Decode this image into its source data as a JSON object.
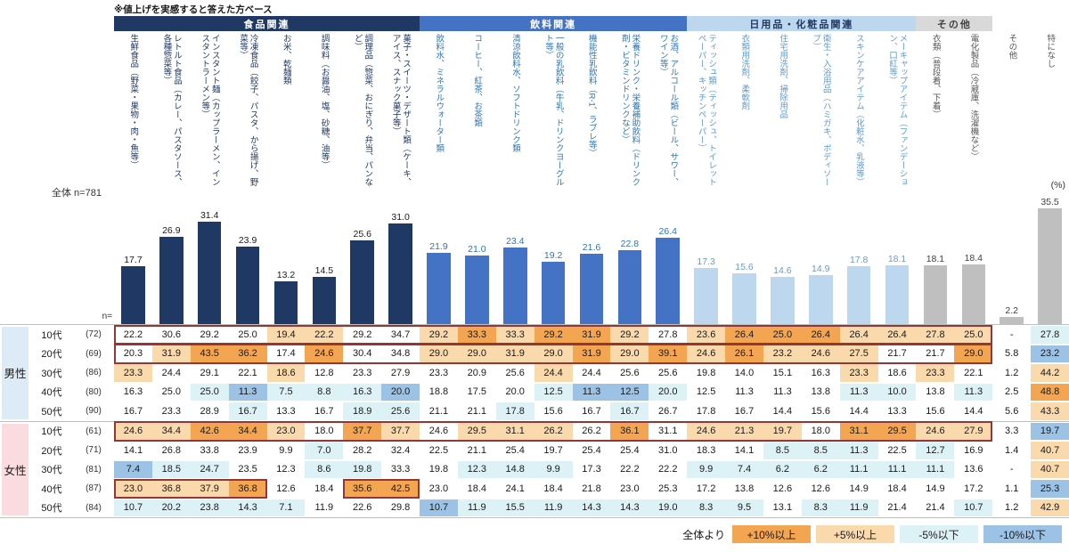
{
  "note": "※値上げを実感すると答えた方ベース",
  "percent_unit": "(%)",
  "overall_label": "全体 n=781",
  "n_label": "n=",
  "groups": [
    {
      "label": "食品関連",
      "header_bg": "#1F3864",
      "header_text": "#FFFFFF",
      "bar_color": "#1F3864",
      "value_color": "#1A1A1A",
      "label_color": "#1F3864",
      "col_start": 1,
      "col_end": 8
    },
    {
      "label": "飲料関連",
      "header_bg": "#4472C4",
      "header_text": "#FFFFFF",
      "bar_color": "#4472C4",
      "value_color": "#2E75B6",
      "label_color": "#2E75B6",
      "col_start": 9,
      "col_end": 15
    },
    {
      "label": "日用品・化粧品関連",
      "header_bg": "#BDD7EE",
      "header_text": "#1F3864",
      "bar_color": "#BDD7EE",
      "value_color": "#6D9BC8",
      "label_color": "#5B9BD5",
      "col_start": 16,
      "col_end": 21
    },
    {
      "label": "その他",
      "header_bg": "#D9D9D9",
      "header_text": "#404040",
      "bar_color": "#BFBFBF",
      "value_color": "#404040",
      "label_color": "#595959",
      "col_start": 22,
      "col_end": 23
    }
  ],
  "columns": [
    {
      "label": "生鮮食品（野菜・果物・肉・魚等）",
      "group": 0
    },
    {
      "label": "レトルト食品（カレー、パスタソース、各種惣菜等）",
      "group": 0
    },
    {
      "label": "インスタント麺（カップラーメン、インスタントラーメン等）",
      "group": 0
    },
    {
      "label": "冷凍食品（餃子、パスタ、から揚げ、野菜等）",
      "group": 0
    },
    {
      "label": "お米、乾麺類",
      "group": 0
    },
    {
      "label": "調味料（お醤油、塩、砂糖、油等）",
      "group": 0
    },
    {
      "label": "調理品（惣菜、おにぎり、弁当、パンなど）",
      "group": 0
    },
    {
      "label": "菓子・スイーツ・デザート類（ケーキ、アイス、スナック菓子等）",
      "group": 0
    },
    {
      "label": "飲料水、ミネラルウォーター類",
      "group": 1
    },
    {
      "label": "コーヒー、紅茶、お茶類",
      "group": 1
    },
    {
      "label": "清涼飲料水、ソフトドリンク類",
      "group": 1
    },
    {
      "label": "一般の乳飲料（牛乳、ドリンクヨーグルト等）",
      "group": 1
    },
    {
      "label": "機能性乳飲料（R-1、ラブレ等）",
      "group": 1
    },
    {
      "label": "栄養ドリンク・栄養補助飲料（ドリンク剤・ビタミンドリンクなど）",
      "group": 1
    },
    {
      "label": "お酒、アルコール類（ビール、サワー、ワイン等）",
      "group": 1
    },
    {
      "label": "ティッシュ類（ティッシュ、トイレットペーパー、キッチンペーパー）",
      "group": 2
    },
    {
      "label": "衣類用洗剤、柔軟剤",
      "group": 2
    },
    {
      "label": "住宅用洗剤、掃除用品",
      "group": 2
    },
    {
      "label": "衛生・入浴用品（ハミガキ、ボディソープ）",
      "group": 2
    },
    {
      "label": "スキンケアアイテム（化粧水、乳液等）",
      "group": 2
    },
    {
      "label": "メーキャップアイテム（ファンデーション、口紅等）",
      "group": 2
    },
    {
      "label": "衣類（普段着、下着）",
      "group": 3
    },
    {
      "label": "電化製品（冷蔵庫、洗濯機など）",
      "group": 3
    },
    {
      "label": "その他",
      "group": 3
    },
    {
      "label": "特になし",
      "group": 3
    }
  ],
  "chart_data": {
    "type": "bar",
    "title": "※値上げを実感すると答えた方ベース",
    "unit": "%",
    "ylim": [
      0,
      40
    ],
    "overall_n": "全体 n=781",
    "categories": [
      "生鮮食品（野菜・果物・肉・魚等）",
      "レトルト食品（カレー、パスタソース、各種惣菜等）",
      "インスタント麺（カップラーメン、インスタントラーメン等）",
      "冷凍食品（餃子、パスタ、から揚げ、野菜等）",
      "お米、乾麺類",
      "調味料（お醤油、塩、砂糖、油等）",
      "調理品（惣菜、おにぎり、弁当、パンなど）",
      "菓子・スイーツ・デザート類（ケーキ、アイス、スナック菓子等）",
      "飲料水、ミネラルウォーター類",
      "コーヒー、紅茶、お茶類",
      "清涼飲料水、ソフトドリンク類",
      "一般の乳飲料（牛乳、ドリンクヨーグルト等）",
      "機能性乳飲料（R-1、ラブレ等）",
      "栄養ドリンク・栄養補助飲料（ドリンク剤・ビタミンドリンクなど）",
      "お酒、アルコール類（ビール、サワー、ワイン等）",
      "ティッシュ類（ティッシュ、トイレットペーパー、キッチンペーパー）",
      "衣類用洗剤、柔軟剤",
      "住宅用洗剤、掃除用品",
      "衛生・入浴用品（ハミガキ、ボディソープ）",
      "スキンケアアイテム（化粧水、乳液等）",
      "メーキャップアイテム（ファンデーション、口紅等）",
      "衣類（普段着、下着）",
      "電化製品（冷蔵庫、洗濯機など）",
      "その他",
      "特になし"
    ],
    "values": [
      17.7,
      26.9,
      31.4,
      23.9,
      13.2,
      14.5,
      25.6,
      31.0,
      21.9,
      21.0,
      23.4,
      19.2,
      21.6,
      22.8,
      26.4,
      17.3,
      15.6,
      14.6,
      14.9,
      17.8,
      18.1,
      18.1,
      18.4,
      2.2,
      35.5
    ]
  },
  "table": {
    "gender_groups": [
      {
        "label": "男性",
        "bg": "#DDEBF7",
        "rows": [
          {
            "age": "10代",
            "n": "(72)",
            "values": [
              22.2,
              30.6,
              29.2,
              25.0,
              19.4,
              22.2,
              29.2,
              34.7,
              29.2,
              33.3,
              33.3,
              29.2,
              31.9,
              29.2,
              27.8,
              23.6,
              26.4,
              25.0,
              26.4,
              26.4,
              26.4,
              27.8,
              25.0,
              "-",
              27.8
            ]
          },
          {
            "age": "20代",
            "n": "(69)",
            "values": [
              20.3,
              31.9,
              43.5,
              36.2,
              17.4,
              24.6,
              30.4,
              34.8,
              29.0,
              29.0,
              31.9,
              29.0,
              31.9,
              29.0,
              39.1,
              24.6,
              26.1,
              23.2,
              24.6,
              27.5,
              21.7,
              21.7,
              29.0,
              5.8,
              23.2
            ]
          },
          {
            "age": "30代",
            "n": "(86)",
            "values": [
              23.3,
              24.4,
              29.1,
              22.1,
              18.6,
              12.8,
              23.3,
              27.9,
              23.3,
              20.9,
              25.6,
              24.4,
              24.4,
              25.6,
              25.6,
              19.8,
              14.0,
              15.1,
              16.3,
              23.3,
              18.6,
              23.3,
              22.1,
              1.2,
              44.2
            ]
          },
          {
            "age": "40代",
            "n": "(80)",
            "values": [
              16.3,
              25.0,
              25.0,
              11.3,
              7.5,
              8.8,
              16.3,
              20.0,
              18.8,
              17.5,
              20.0,
              12.5,
              11.3,
              12.5,
              20.0,
              12.5,
              11.3,
              11.3,
              13.8,
              11.3,
              10.0,
              13.8,
              11.3,
              2.5,
              48.8
            ]
          },
          {
            "age": "50代",
            "n": "(90)",
            "values": [
              16.7,
              23.3,
              28.9,
              16.7,
              13.3,
              16.7,
              18.9,
              25.6,
              21.1,
              21.1,
              17.8,
              15.6,
              16.7,
              16.7,
              26.7,
              17.8,
              16.7,
              14.4,
              15.6,
              14.4,
              13.3,
              15.6,
              14.4,
              5.6,
              43.3
            ]
          }
        ]
      },
      {
        "label": "女性",
        "bg": "#FADCE0",
        "rows": [
          {
            "age": "10代",
            "n": "(61)",
            "values": [
              24.6,
              34.4,
              42.6,
              34.4,
              23.0,
              18.0,
              37.7,
              37.7,
              24.6,
              29.5,
              31.1,
              26.2,
              26.2,
              36.1,
              31.1,
              24.6,
              21.3,
              19.7,
              18.0,
              31.1,
              29.5,
              24.6,
              27.9,
              3.3,
              19.7
            ]
          },
          {
            "age": "20代",
            "n": "(71)",
            "values": [
              14.1,
              26.8,
              33.8,
              23.9,
              9.9,
              7.0,
              28.2,
              32.4,
              22.5,
              21.1,
              25.4,
              19.7,
              25.4,
              25.4,
              31.0,
              18.3,
              14.1,
              8.5,
              8.5,
              11.3,
              22.5,
              12.7,
              16.9,
              1.4,
              40.7
            ]
          },
          {
            "age": "30代",
            "n": "(81)",
            "values": [
              7.4,
              18.5,
              24.7,
              23.5,
              12.3,
              8.6,
              19.8,
              33.3,
              19.8,
              12.3,
              14.8,
              9.9,
              17.3,
              22.2,
              22.2,
              9.9,
              7.4,
              6.2,
              6.2,
              11.1,
              11.1,
              11.1,
              13.6,
              "-",
              40.7
            ]
          },
          {
            "age": "40代",
            "n": "(87)",
            "values": [
              23.0,
              36.8,
              37.9,
              36.8,
              12.6,
              18.4,
              35.6,
              42.5,
              23.0,
              18.4,
              24.1,
              18.4,
              21.8,
              23.0,
              25.3,
              17.2,
              13.8,
              12.6,
              12.6,
              14.9,
              18.4,
              14.9,
              17.2,
              1.1,
              25.3
            ]
          },
          {
            "age": "50代",
            "n": "(84)",
            "values": [
              10.7,
              20.2,
              23.8,
              14.3,
              7.1,
              11.9,
              22.6,
              29.8,
              10.7,
              11.9,
              15.5,
              11.9,
              14.3,
              14.3,
              19.0,
              8.3,
              9.5,
              13.1,
              8.3,
              11.9,
              21.4,
              21.4,
              10.7,
              1.2,
              42.9
            ]
          }
        ]
      }
    ]
  },
  "conditional_formatting": {
    "legend_prefix": "全体より",
    "rules": [
      {
        "label": "+10%以上",
        "color": "#F4A552",
        "op": ">=",
        "threshold": 10
      },
      {
        "label": "+5%以上",
        "color": "#FAD9AC",
        "op": ">=",
        "threshold": 5
      },
      {
        "label": "-5%以下",
        "color": "#DDF2F7",
        "op": "<=",
        "threshold": -5
      },
      {
        "label": "-10%以下",
        "color": "#9CC2E5",
        "op": "<=",
        "threshold": -10
      }
    ]
  },
  "highlight_color": "#943634",
  "highlights": [
    {
      "gender": 0,
      "row": 0,
      "col_start": 1,
      "col_end": 23
    },
    {
      "gender": 0,
      "row": 1,
      "col_start": 1,
      "col_end": 23
    },
    {
      "gender": 1,
      "row": 0,
      "col_start": 1,
      "col_end": 23
    },
    {
      "gender": 1,
      "row": 3,
      "col_start": 1,
      "col_end": 4
    },
    {
      "gender": 1,
      "row": 3,
      "col_start": 7,
      "col_end": 8
    }
  ]
}
